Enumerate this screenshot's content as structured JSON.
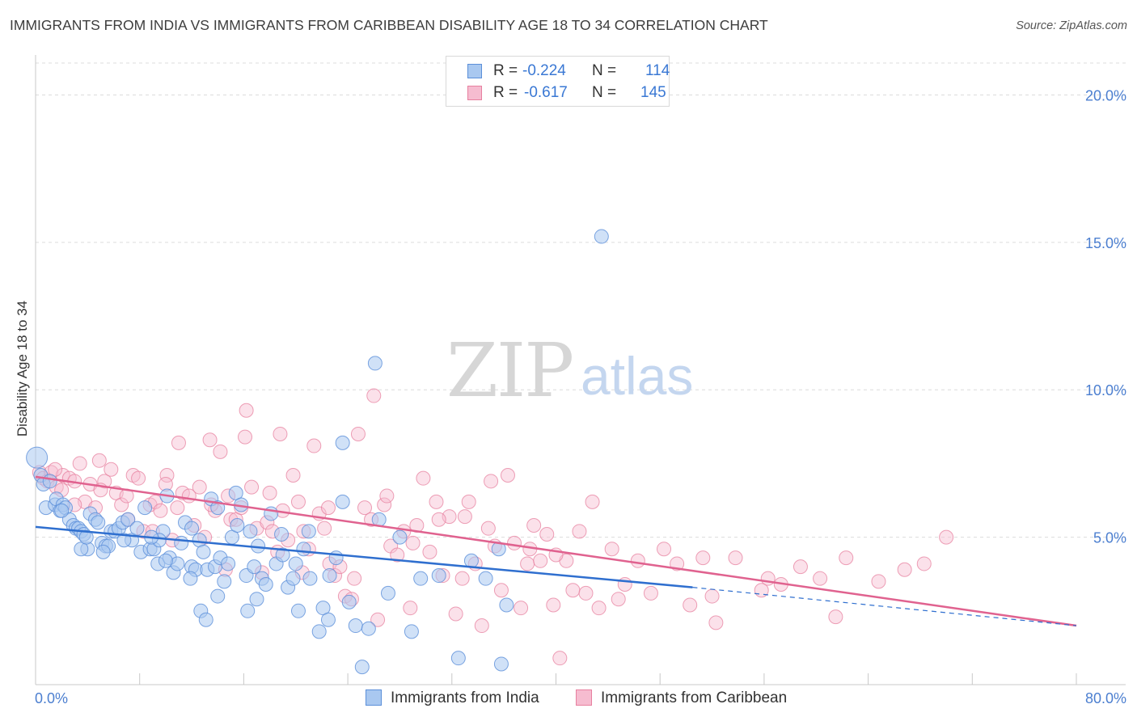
{
  "title": "IMMIGRANTS FROM INDIA VS IMMIGRANTS FROM CARIBBEAN DISABILITY AGE 18 TO 34 CORRELATION CHART",
  "source": "Source: ZipAtlas.com",
  "watermark": {
    "zip": "ZIP",
    "atlas": "atlas"
  },
  "legend": {
    "rows": [
      {
        "r_label": "R =",
        "r_value": "-0.224",
        "n_label": "N =",
        "n_value": "114"
      },
      {
        "r_label": "R =",
        "r_value": "-0.617",
        "n_label": "N =",
        "n_value": "145"
      }
    ]
  },
  "colors": {
    "india_fill": "#a9c8f0",
    "india_stroke": "#5b8fd9",
    "india_line": "#2f6fcf",
    "caribbean_fill": "#f6bcd0",
    "caribbean_stroke": "#e7809f",
    "caribbean_line": "#e0628f",
    "axis_text": "#4c7fd0",
    "grid": "#dcdcdc"
  },
  "chart_data": {
    "type": "scatter",
    "title": "IMMIGRANTS FROM INDIA VS IMMIGRANTS FROM CARIBBEAN DISABILITY AGE 18 TO 34 CORRELATION CHART",
    "xlabel": "",
    "ylabel": "Disability Age 18 to 34",
    "xlim": [
      0,
      80
    ],
    "ylim": [
      0,
      21
    ],
    "x_tick_labels": [
      "0.0%",
      "80.0%"
    ],
    "y_ticks": [
      5,
      10,
      15,
      20
    ],
    "y_tick_labels": [
      "5.0%",
      "10.0%",
      "15.0%",
      "20.0%"
    ],
    "grid": true,
    "legend_position": "top-center",
    "series": [
      {
        "name": "Immigrants from India",
        "R": -0.224,
        "N": 114,
        "trend": {
          "x0": 0,
          "y0": 5.35,
          "x1": 50.5,
          "y1": 3.3,
          "dashed_to_x": 80,
          "dashed_to_y": 2.0
        },
        "points": [
          [
            0.1,
            7.7
          ],
          [
            0.4,
            7.1
          ],
          [
            0.6,
            6.8
          ],
          [
            0.8,
            6.0
          ],
          [
            1.1,
            6.9
          ],
          [
            1.5,
            6.1
          ],
          [
            1.6,
            6.3
          ],
          [
            1.9,
            5.9
          ],
          [
            2.1,
            6.1
          ],
          [
            2.3,
            6.0
          ],
          [
            2.6,
            5.6
          ],
          [
            2.9,
            5.4
          ],
          [
            3.1,
            5.3
          ],
          [
            3.3,
            5.3
          ],
          [
            3.5,
            5.2
          ],
          [
            3.7,
            5.1
          ],
          [
            4.0,
            4.6
          ],
          [
            4.2,
            5.8
          ],
          [
            4.6,
            5.6
          ],
          [
            4.8,
            5.5
          ],
          [
            5.1,
            4.8
          ],
          [
            5.4,
            4.7
          ],
          [
            5.6,
            4.7
          ],
          [
            5.8,
            5.2
          ],
          [
            6.1,
            5.2
          ],
          [
            6.4,
            5.3
          ],
          [
            6.7,
            5.5
          ],
          [
            7.1,
            5.6
          ],
          [
            7.4,
            4.9
          ],
          [
            7.8,
            5.3
          ],
          [
            8.1,
            4.5
          ],
          [
            8.4,
            6.0
          ],
          [
            8.8,
            4.6
          ],
          [
            9.1,
            4.6
          ],
          [
            9.4,
            4.1
          ],
          [
            9.8,
            5.2
          ],
          [
            10.1,
            6.4
          ],
          [
            10.3,
            4.3
          ],
          [
            10.6,
            3.8
          ],
          [
            10.9,
            4.1
          ],
          [
            11.2,
            4.8
          ],
          [
            11.5,
            5.5
          ],
          [
            12.0,
            4.0
          ],
          [
            12.3,
            3.9
          ],
          [
            12.6,
            4.9
          ],
          [
            12.9,
            4.5
          ],
          [
            13.2,
            3.9
          ],
          [
            13.5,
            6.3
          ],
          [
            13.8,
            4.0
          ],
          [
            14.2,
            4.3
          ],
          [
            14.5,
            3.5
          ],
          [
            14.8,
            4.1
          ],
          [
            15.1,
            5.0
          ],
          [
            15.4,
            6.5
          ],
          [
            15.8,
            6.1
          ],
          [
            16.2,
            3.7
          ],
          [
            16.5,
            5.2
          ],
          [
            16.8,
            4.0
          ],
          [
            17.1,
            4.7
          ],
          [
            17.4,
            3.6
          ],
          [
            17.7,
            3.4
          ],
          [
            18.1,
            5.8
          ],
          [
            18.5,
            4.1
          ],
          [
            18.9,
            5.1
          ],
          [
            19.4,
            3.3
          ],
          [
            19.8,
            3.6
          ],
          [
            20.2,
            2.5
          ],
          [
            20.6,
            4.6
          ],
          [
            21.1,
            3.6
          ],
          [
            21.8,
            1.8
          ],
          [
            22.1,
            2.6
          ],
          [
            22.6,
            3.7
          ],
          [
            23.1,
            4.3
          ],
          [
            23.6,
            6.2
          ],
          [
            24.1,
            2.8
          ],
          [
            24.6,
            2.0
          ],
          [
            25.1,
            0.6
          ],
          [
            25.6,
            1.9
          ],
          [
            26.4,
            5.6
          ],
          [
            27.1,
            3.1
          ],
          [
            28.0,
            5.0
          ],
          [
            28.9,
            1.8
          ],
          [
            29.6,
            3.6
          ],
          [
            31.0,
            3.7
          ],
          [
            32.5,
            0.9
          ],
          [
            33.5,
            4.2
          ],
          [
            34.6,
            3.6
          ],
          [
            35.6,
            4.6
          ],
          [
            35.8,
            0.7
          ],
          [
            36.2,
            2.7
          ],
          [
            3.5,
            4.6
          ],
          [
            5.2,
            4.5
          ],
          [
            9.5,
            4.9
          ],
          [
            11.9,
            3.6
          ],
          [
            14.0,
            6.0
          ],
          [
            15.5,
            5.4
          ],
          [
            12.7,
            2.5
          ],
          [
            13.1,
            2.2
          ],
          [
            16.3,
            2.5
          ],
          [
            20.0,
            4.1
          ],
          [
            22.5,
            2.2
          ],
          [
            26.1,
            10.9
          ],
          [
            23.6,
            8.2
          ],
          [
            43.5,
            15.2
          ],
          [
            2.0,
            5.9
          ],
          [
            3.9,
            5.0
          ],
          [
            6.8,
            4.9
          ],
          [
            8.9,
            5.0
          ],
          [
            10.0,
            4.2
          ],
          [
            12.0,
            5.3
          ],
          [
            14.0,
            3.0
          ],
          [
            17.0,
            2.9
          ],
          [
            19.0,
            4.4
          ],
          [
            21.0,
            5.2
          ]
        ]
      },
      {
        "name": "Immigrants from Caribbean",
        "R": -0.617,
        "N": 145,
        "trend": {
          "x0": 0,
          "y0": 7.05,
          "x1": 80,
          "y1": 2.0
        },
        "points": [
          [
            0.3,
            7.2
          ],
          [
            0.6,
            7.0
          ],
          [
            0.9,
            6.9
          ],
          [
            1.2,
            7.2
          ],
          [
            1.6,
            6.7
          ],
          [
            2.1,
            7.1
          ],
          [
            2.6,
            7.0
          ],
          [
            3.0,
            6.9
          ],
          [
            3.4,
            7.5
          ],
          [
            3.8,
            6.2
          ],
          [
            4.2,
            6.8
          ],
          [
            4.6,
            6.0
          ],
          [
            4.9,
            7.6
          ],
          [
            5.3,
            6.9
          ],
          [
            5.8,
            7.3
          ],
          [
            6.2,
            6.5
          ],
          [
            6.6,
            6.1
          ],
          [
            7.1,
            5.6
          ],
          [
            7.5,
            7.1
          ],
          [
            7.9,
            7.0
          ],
          [
            8.3,
            5.2
          ],
          [
            8.8,
            6.1
          ],
          [
            9.2,
            6.2
          ],
          [
            9.6,
            5.9
          ],
          [
            10.1,
            7.1
          ],
          [
            10.5,
            4.9
          ],
          [
            10.9,
            6.0
          ],
          [
            11.3,
            6.5
          ],
          [
            11.8,
            6.4
          ],
          [
            12.2,
            5.4
          ],
          [
            12.6,
            6.7
          ],
          [
            13.0,
            5.0
          ],
          [
            13.4,
            8.3
          ],
          [
            13.8,
            5.9
          ],
          [
            14.2,
            7.9
          ],
          [
            14.6,
            3.9
          ],
          [
            15.0,
            5.6
          ],
          [
            15.4,
            5.6
          ],
          [
            15.8,
            6.0
          ],
          [
            16.2,
            9.3
          ],
          [
            16.6,
            6.7
          ],
          [
            17.0,
            5.3
          ],
          [
            17.4,
            3.8
          ],
          [
            17.8,
            5.5
          ],
          [
            18.2,
            5.2
          ],
          [
            18.6,
            4.5
          ],
          [
            19.0,
            5.9
          ],
          [
            19.4,
            4.9
          ],
          [
            19.8,
            7.1
          ],
          [
            20.2,
            6.2
          ],
          [
            20.6,
            5.2
          ],
          [
            21.0,
            4.6
          ],
          [
            21.4,
            8.1
          ],
          [
            21.8,
            5.8
          ],
          [
            22.2,
            5.3
          ],
          [
            22.6,
            4.1
          ],
          [
            23.0,
            3.7
          ],
          [
            23.4,
            4.0
          ],
          [
            23.8,
            3.0
          ],
          [
            24.3,
            2.9
          ],
          [
            24.8,
            8.5
          ],
          [
            25.3,
            6.0
          ],
          [
            25.8,
            5.6
          ],
          [
            26.3,
            2.2
          ],
          [
            26.8,
            6.1
          ],
          [
            27.3,
            4.7
          ],
          [
            27.8,
            4.4
          ],
          [
            28.3,
            5.2
          ],
          [
            28.8,
            2.6
          ],
          [
            29.3,
            5.4
          ],
          [
            29.8,
            7.0
          ],
          [
            30.3,
            4.5
          ],
          [
            30.8,
            6.2
          ],
          [
            31.3,
            3.7
          ],
          [
            31.8,
            5.7
          ],
          [
            32.3,
            2.4
          ],
          [
            32.8,
            3.6
          ],
          [
            33.3,
            6.2
          ],
          [
            33.8,
            4.1
          ],
          [
            34.3,
            2.0
          ],
          [
            34.8,
            5.3
          ],
          [
            35.3,
            4.7
          ],
          [
            35.8,
            3.2
          ],
          [
            36.3,
            7.1
          ],
          [
            36.8,
            4.8
          ],
          [
            37.3,
            2.6
          ],
          [
            37.8,
            4.1
          ],
          [
            38.3,
            5.4
          ],
          [
            38.8,
            4.2
          ],
          [
            39.3,
            5.1
          ],
          [
            39.8,
            2.7
          ],
          [
            40.3,
            0.9
          ],
          [
            40.8,
            4.2
          ],
          [
            41.3,
            3.2
          ],
          [
            41.8,
            5.2
          ],
          [
            42.3,
            3.1
          ],
          [
            42.8,
            6.2
          ],
          [
            43.3,
            2.6
          ],
          [
            44.3,
            4.6
          ],
          [
            45.3,
            3.4
          ],
          [
            46.3,
            4.2
          ],
          [
            47.3,
            3.1
          ],
          [
            48.3,
            4.6
          ],
          [
            49.3,
            4.1
          ],
          [
            50.3,
            2.7
          ],
          [
            51.3,
            4.3
          ],
          [
            52.3,
            2.1
          ],
          [
            53.8,
            4.3
          ],
          [
            55.8,
            3.2
          ],
          [
            57.3,
            3.4
          ],
          [
            58.8,
            4.0
          ],
          [
            60.3,
            3.6
          ],
          [
            62.3,
            4.3
          ],
          [
            64.8,
            3.5
          ],
          [
            66.8,
            3.9
          ],
          [
            68.3,
            4.1
          ],
          [
            70.0,
            5.0
          ],
          [
            26.0,
            9.8
          ],
          [
            16.1,
            8.4
          ],
          [
            18.8,
            8.5
          ],
          [
            11.0,
            8.2
          ],
          [
            13.5,
            6.1
          ],
          [
            9.0,
            5.2
          ],
          [
            7.0,
            6.4
          ],
          [
            5.0,
            6.6
          ],
          [
            3.0,
            6.1
          ],
          [
            2.0,
            6.6
          ],
          [
            1.5,
            7.3
          ],
          [
            10.0,
            6.8
          ],
          [
            14.8,
            6.4
          ],
          [
            18.0,
            6.5
          ],
          [
            20.5,
            3.8
          ],
          [
            22.5,
            6.0
          ],
          [
            24.5,
            3.6
          ],
          [
            27.0,
            6.4
          ],
          [
            29.0,
            4.8
          ],
          [
            31.0,
            5.6
          ],
          [
            33.0,
            5.7
          ],
          [
            35.0,
            6.9
          ],
          [
            38.0,
            4.6
          ],
          [
            40.0,
            4.4
          ],
          [
            44.8,
            2.9
          ],
          [
            52.0,
            3.0
          ],
          [
            56.3,
            3.6
          ],
          [
            61.5,
            2.3
          ]
        ]
      }
    ]
  },
  "bottom_legend": [
    {
      "label": "Immigrants from India"
    },
    {
      "label": "Immigrants from Caribbean"
    }
  ]
}
